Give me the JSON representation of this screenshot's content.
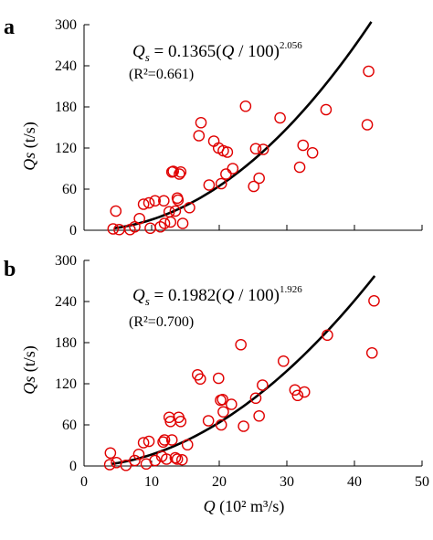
{
  "chart_data": [
    {
      "type": "scatter",
      "panel_label": "a",
      "equation": {
        "lhs": "Q",
        "lhs_sub": "s",
        "rhs": " = 0.1365(",
        "q": "Q",
        "rest": " / 100)",
        "exponent": "2.056"
      },
      "r2_text": "(R²=0.661)",
      "ylabel": {
        "main": "Qs",
        "unit": " (t/s)"
      },
      "xlabel": {
        "main": "Q",
        "unit": " (10² m³/s)"
      },
      "show_xlabel": false,
      "show_xtick_labels": false,
      "xlim": [
        0,
        50
      ],
      "ylim": [
        0,
        300
      ],
      "xticks": [
        0,
        10,
        20,
        30,
        40,
        50
      ],
      "yticks": [
        0,
        60,
        120,
        180,
        240,
        300
      ],
      "xtick_labels": [
        "0",
        "10",
        "20",
        "30",
        "40",
        "50"
      ],
      "ytick_labels": [
        "0",
        "60",
        "120",
        "180",
        "240",
        "300"
      ],
      "fit": {
        "coefficient": 0.1365,
        "exponent": 2.056,
        "x_range": [
          4.5,
          42.5
        ]
      },
      "marker_color": "#e00000",
      "curve_color": "#000000",
      "points": [
        [
          4.3,
          2
        ],
        [
          4.7,
          28
        ],
        [
          5.2,
          1
        ],
        [
          6.8,
          1
        ],
        [
          7.5,
          5
        ],
        [
          8.2,
          17
        ],
        [
          8.8,
          38
        ],
        [
          9.6,
          40
        ],
        [
          9.8,
          3
        ],
        [
          10.5,
          43
        ],
        [
          11.3,
          5
        ],
        [
          11.8,
          43
        ],
        [
          11.9,
          10
        ],
        [
          12.6,
          27
        ],
        [
          12.8,
          12
        ],
        [
          13.0,
          85
        ],
        [
          13.2,
          86
        ],
        [
          13.5,
          28
        ],
        [
          13.8,
          47
        ],
        [
          13.9,
          44
        ],
        [
          14.1,
          82
        ],
        [
          14.3,
          85
        ],
        [
          14.6,
          10
        ],
        [
          15.6,
          33
        ],
        [
          17.0,
          138
        ],
        [
          17.3,
          157
        ],
        [
          18.5,
          66
        ],
        [
          19.2,
          130
        ],
        [
          19.9,
          120
        ],
        [
          20.3,
          68
        ],
        [
          20.6,
          116
        ],
        [
          21.0,
          82
        ],
        [
          21.2,
          114
        ],
        [
          22.0,
          90
        ],
        [
          23.9,
          181
        ],
        [
          25.1,
          64
        ],
        [
          25.4,
          119
        ],
        [
          25.9,
          76
        ],
        [
          26.5,
          118
        ],
        [
          29.0,
          164
        ],
        [
          31.9,
          92
        ],
        [
          32.4,
          124
        ],
        [
          33.8,
          113
        ],
        [
          35.8,
          176
        ],
        [
          41.9,
          154
        ],
        [
          42.1,
          232
        ]
      ]
    },
    {
      "type": "scatter",
      "panel_label": "b",
      "equation": {
        "lhs": "Q",
        "lhs_sub": "s",
        "rhs": " = 0.1982(",
        "q": "Q",
        "rest": " / 100)",
        "exponent": "1.926"
      },
      "r2_text": "(R²=0.700)",
      "ylabel": {
        "main": "Qs",
        "unit": " (t/s)"
      },
      "xlabel": {
        "main": "Q",
        "unit": " (10² m³/s)"
      },
      "show_xlabel": true,
      "show_xtick_labels": true,
      "xlim": [
        0,
        50
      ],
      "ylim": [
        0,
        300
      ],
      "xticks": [
        0,
        10,
        20,
        30,
        40,
        50
      ],
      "yticks": [
        0,
        60,
        120,
        180,
        240,
        300
      ],
      "xtick_labels": [
        "0",
        "10",
        "20",
        "30",
        "40",
        "50"
      ],
      "ytick_labels": [
        "0",
        "60",
        "120",
        "180",
        "240",
        "300"
      ],
      "fit": {
        "coefficient": 0.1982,
        "exponent": 1.926,
        "x_range": [
          4.0,
          43.0
        ]
      },
      "marker_color": "#e00000",
      "curve_color": "#000000",
      "points": [
        [
          3.8,
          2
        ],
        [
          3.9,
          19
        ],
        [
          4.8,
          5
        ],
        [
          6.2,
          1
        ],
        [
          7.5,
          8
        ],
        [
          8.1,
          17
        ],
        [
          8.8,
          34
        ],
        [
          9.2,
          3
        ],
        [
          9.6,
          36
        ],
        [
          10.5,
          8
        ],
        [
          11.5,
          14
        ],
        [
          11.7,
          35
        ],
        [
          11.9,
          38
        ],
        [
          12.2,
          10
        ],
        [
          12.6,
          71
        ],
        [
          12.8,
          65
        ],
        [
          13.0,
          38
        ],
        [
          13.5,
          12
        ],
        [
          13.8,
          10
        ],
        [
          14.0,
          71
        ],
        [
          14.3,
          65
        ],
        [
          14.5,
          9
        ],
        [
          15.3,
          31
        ],
        [
          16.8,
          133
        ],
        [
          17.2,
          127
        ],
        [
          18.4,
          66
        ],
        [
          19.9,
          128
        ],
        [
          20.2,
          96
        ],
        [
          20.3,
          60
        ],
        [
          20.5,
          97
        ],
        [
          20.6,
          79
        ],
        [
          21.8,
          90
        ],
        [
          23.2,
          177
        ],
        [
          23.6,
          58
        ],
        [
          25.4,
          99
        ],
        [
          25.9,
          73
        ],
        [
          26.4,
          118
        ],
        [
          29.5,
          153
        ],
        [
          31.2,
          111
        ],
        [
          31.6,
          103
        ],
        [
          32.6,
          108
        ],
        [
          36.0,
          191
        ],
        [
          42.6,
          165
        ],
        [
          42.9,
          241
        ]
      ]
    }
  ]
}
